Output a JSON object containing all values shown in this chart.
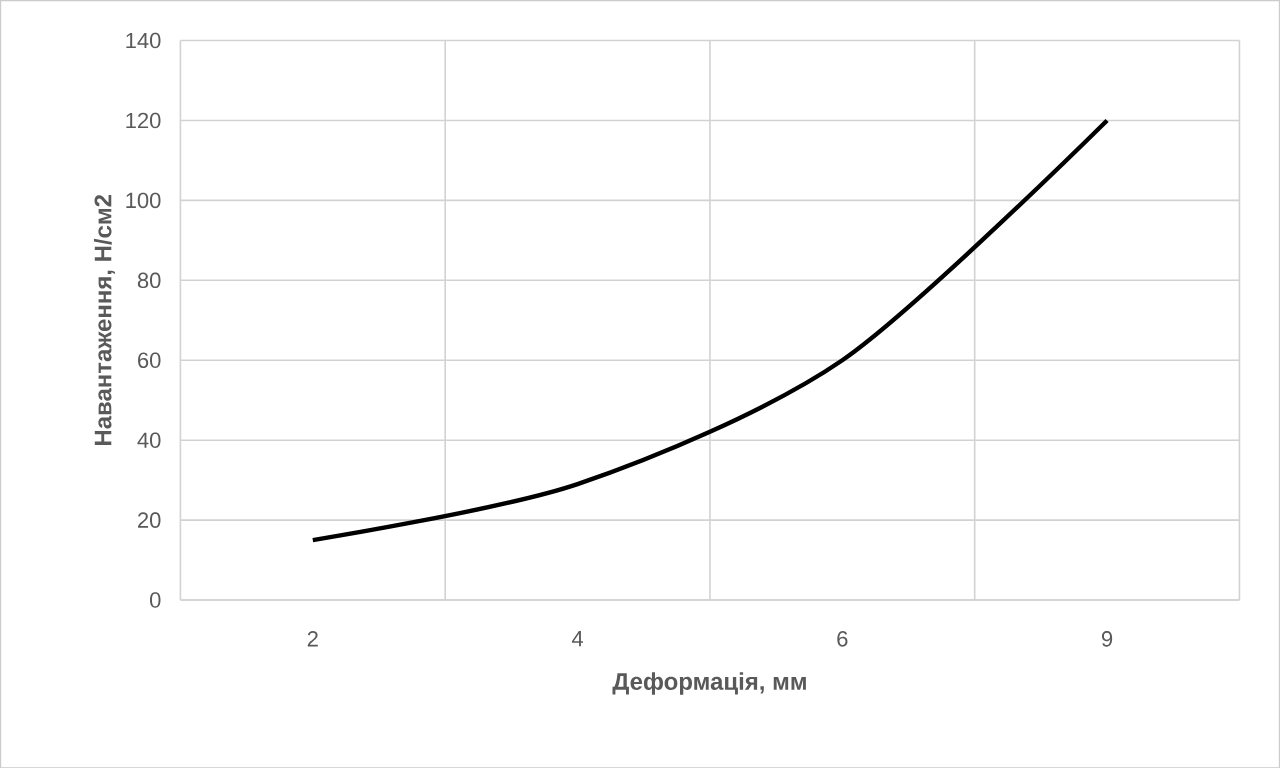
{
  "chart_data": {
    "type": "line",
    "xlabel": "Деформація, мм",
    "ylabel": "Навантаження, Н/см2",
    "categories": [
      "2",
      "4",
      "6",
      "9"
    ],
    "series": [
      {
        "color": "#000000",
        "values": [
          15,
          29,
          60,
          120
        ]
      }
    ],
    "ylim": [
      0,
      140
    ],
    "yticks": [
      0,
      20,
      40,
      60,
      80,
      100,
      120,
      140
    ],
    "grid": true
  }
}
